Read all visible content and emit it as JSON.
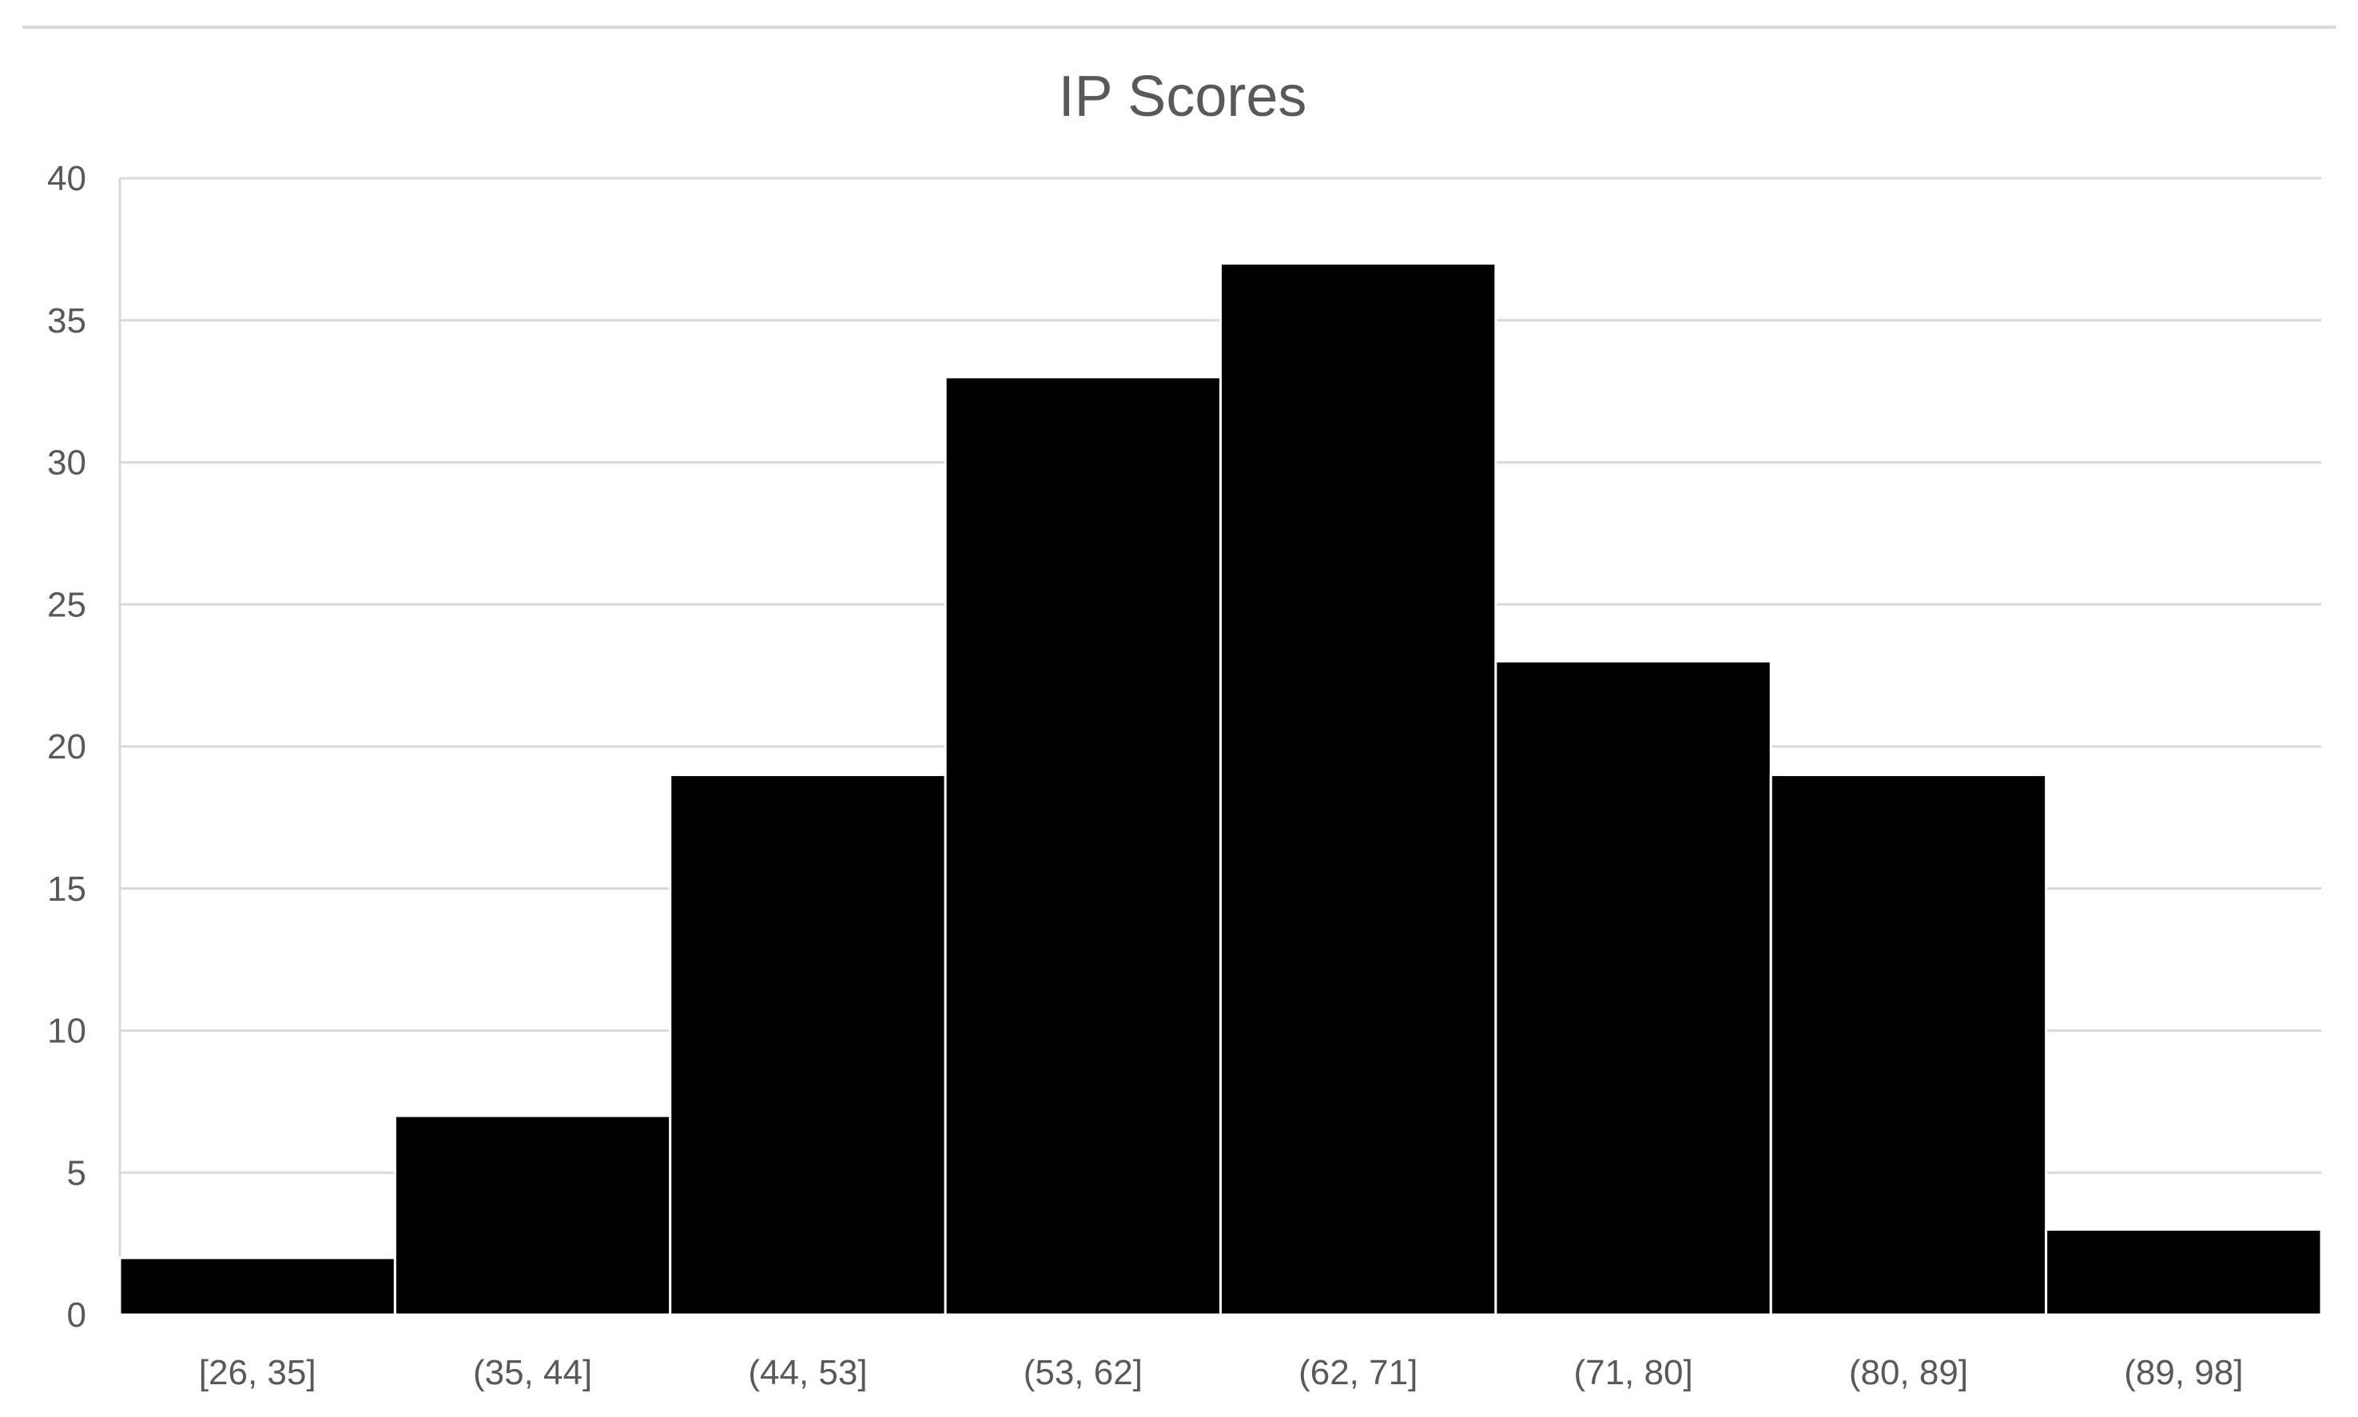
{
  "chart_data": {
    "type": "bar",
    "title": "IP Scores",
    "xlabel": "",
    "ylabel": "",
    "categories": [
      "[26, 35]",
      "(35, 44]",
      "(44, 53]",
      "(53, 62]",
      "(62, 71]",
      "(71, 80]",
      "(80, 89]",
      "(89, 98]"
    ],
    "values": [
      2,
      7,
      19,
      33,
      37,
      23,
      19,
      3
    ],
    "ylim": [
      0,
      40
    ],
    "yticks": [
      0,
      5,
      10,
      15,
      20,
      25,
      30,
      35,
      40
    ],
    "grid": true,
    "legend": "none",
    "colors": {
      "bar": "#000000",
      "grid": "#d9d9d9",
      "text": "#595959"
    }
  }
}
